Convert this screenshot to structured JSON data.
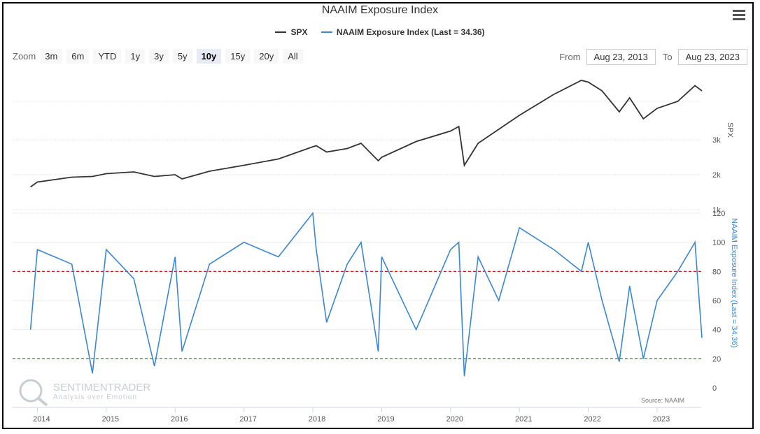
{
  "title": "NAAIM Exposure Index",
  "legend": [
    {
      "label": "SPX",
      "color": "#333333"
    },
    {
      "label": "NAAIM Exposure Index (Last = 34.36)",
      "color": "#3a87d8"
    }
  ],
  "zoom": {
    "label": "Zoom",
    "buttons": [
      "3m",
      "6m",
      "YTD",
      "1y",
      "3y",
      "5y",
      "10y",
      "15y",
      "20y",
      "All"
    ],
    "active": "10y"
  },
  "range": {
    "from_label": "From",
    "from_value": "Aug 23, 2013",
    "to_label": "To",
    "to_value": "Aug 23, 2023"
  },
  "watermark": {
    "name": "SENTIMENTRADER",
    "tagline": "Analysis over Emotion"
  },
  "source": "Source: NAAIM",
  "chart_data": {
    "type": "line",
    "x": [
      2013.9,
      2014.0,
      2014.5,
      2014.8,
      2015.0,
      2015.4,
      2015.7,
      2016.0,
      2016.1,
      2016.5,
      2017.0,
      2017.5,
      2018.0,
      2018.05,
      2018.2,
      2018.5,
      2018.7,
      2018.95,
      2019.0,
      2019.5,
      2020.0,
      2020.12,
      2020.2,
      2020.4,
      2020.7,
      2021.0,
      2021.5,
      2021.9,
      2022.0,
      2022.2,
      2022.45,
      2022.6,
      2022.8,
      2023.0,
      2023.3,
      2023.55,
      2023.65
    ],
    "x_ticks": [
      "2014",
      "2015",
      "2016",
      "2017",
      "2018",
      "2019",
      "2020",
      "2021",
      "2022",
      "2023"
    ],
    "series": [
      {
        "name": "SPX",
        "axis": "top",
        "ylabel": "SPX",
        "y_ticks": [
          "1k",
          "2k",
          "3k"
        ],
        "ylim": [
          1000,
          4800
        ],
        "values": [
          1650,
          1790,
          1930,
          1950,
          2030,
          2080,
          1950,
          2000,
          1880,
          2100,
          2270,
          2450,
          2800,
          2830,
          2650,
          2750,
          2900,
          2400,
          2500,
          2950,
          3250,
          3380,
          2270,
          2900,
          3300,
          3700,
          4300,
          4700,
          4650,
          4400,
          3800,
          4200,
          3600,
          3900,
          4100,
          4550,
          4400
        ]
      },
      {
        "name": "NAAIM Exposure Index (Last = 34.36)",
        "axis": "bottom",
        "ylabel": "NAAIM Exposure Index (Last = 34.36)",
        "y_ticks": [
          "0",
          "20",
          "40",
          "60",
          "80",
          "100",
          "120"
        ],
        "ylim": [
          0,
          120
        ],
        "values": [
          40,
          95,
          85,
          10,
          95,
          75,
          15,
          90,
          25,
          85,
          100,
          90,
          120,
          95,
          45,
          85,
          100,
          25,
          90,
          40,
          95,
          100,
          8,
          90,
          60,
          110,
          95,
          80,
          100,
          60,
          18,
          70,
          20,
          60,
          80,
          100,
          34.36
        ]
      }
    ],
    "reference_lines": [
      {
        "value": 80,
        "color": "#cc0000",
        "style": "dashed"
      },
      {
        "value": 20,
        "color": "#008000",
        "style": "dashed"
      }
    ]
  }
}
